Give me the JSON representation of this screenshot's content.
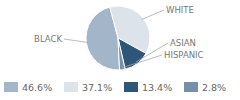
{
  "chart_data": {
    "type": "pie",
    "categories": [
      "BLACK",
      "WHITE",
      "ASIAN",
      "HISPANIC"
    ],
    "values": [
      46.6,
      37.1,
      13.4,
      2.8
    ],
    "value_labels": [
      "46.6%",
      "37.1%",
      "13.4%",
      "2.8%"
    ],
    "colors": [
      "#a3b6c9",
      "#dce3ea",
      "#2d5678",
      "#7790a8"
    ],
    "legend": "bottom",
    "data_labels": false
  }
}
